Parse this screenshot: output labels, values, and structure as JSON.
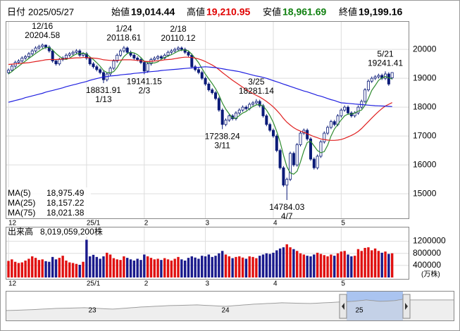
{
  "header": {
    "date_label": "日付",
    "date": "2025/05/27",
    "fields": [
      {
        "label": "始値",
        "value": "19,014.44"
      },
      {
        "label": "高値",
        "value": "19,210.95"
      },
      {
        "label": "安値",
        "value": "18,961.69"
      },
      {
        "label": "終値",
        "value": "19,199.16"
      }
    ]
  },
  "chart_data": {
    "type": "candlestick",
    "categories": [
      "12",
      null,
      null,
      null,
      null,
      null,
      null,
      null,
      null,
      null,
      null,
      null,
      null,
      null,
      null,
      null,
      null,
      null,
      null,
      null,
      null,
      null,
      null,
      "25/1",
      null,
      null,
      null,
      null,
      null,
      null,
      null,
      null,
      null,
      null,
      null,
      null,
      null,
      null,
      null,
      null,
      "2",
      null,
      null,
      null,
      null,
      null,
      null,
      null,
      null,
      null,
      null,
      null,
      null,
      null,
      null,
      null,
      null,
      null,
      "3",
      null,
      null,
      null,
      null,
      null,
      null,
      null,
      null,
      null,
      null,
      null,
      null,
      null,
      null,
      null,
      null,
      null,
      null,
      null,
      "4",
      null,
      null,
      null,
      null,
      null,
      null,
      null,
      null,
      null,
      null,
      null,
      null,
      null,
      null,
      null,
      null,
      null,
      null,
      null,
      "5",
      null,
      null,
      null,
      null,
      null,
      null,
      null,
      null,
      null,
      null,
      null,
      null,
      null,
      null,
      null
    ],
    "ohlc": {
      "open": [
        19200,
        19280,
        19420,
        19550,
        19600,
        19700,
        19750,
        19850,
        19950,
        20050,
        20100,
        20150,
        20080,
        19950,
        19600,
        19500,
        19650,
        19700,
        19800,
        19850,
        19900,
        19950,
        19800,
        19850,
        19700,
        19500,
        19400,
        19300,
        19200,
        18950,
        19150,
        19350,
        19600,
        19800,
        19950,
        20050,
        19900,
        19800,
        19700,
        19650,
        19550,
        19250,
        19500,
        19650,
        19700,
        19750,
        19700,
        19800,
        19900,
        19950,
        20000,
        20050,
        20000,
        19900,
        19800,
        19400,
        19300,
        19200,
        19000,
        18800,
        18600,
        18500,
        18300,
        17900,
        17400,
        17550,
        17700,
        17600,
        17800,
        17900,
        18000,
        17950,
        18100,
        18150,
        18200,
        18050,
        17700,
        17400,
        17200,
        17000,
        16500,
        15900,
        15300,
        15500,
        16400,
        16000,
        16700,
        17100,
        17200,
        16900,
        16200,
        15900,
        16300,
        16800,
        17100,
        17300,
        17500,
        17400,
        17700,
        17900,
        18000,
        17800,
        17700,
        17800,
        18000,
        18200,
        18600,
        18900,
        19000,
        19050,
        19100,
        19000,
        19150,
        19014.44
      ],
      "high": [
        19340,
        19480,
        19610,
        19660,
        19760,
        19810,
        19910,
        20010,
        20110,
        20160,
        20204.58,
        20170,
        20140,
        20010,
        19660,
        19710,
        19760,
        19860,
        19910,
        19960,
        20010,
        20010,
        19910,
        19910,
        19760,
        19560,
        19460,
        19360,
        19260,
        19210,
        19410,
        19660,
        19860,
        20010,
        20118.61,
        20100,
        19960,
        19860,
        19760,
        19710,
        19610,
        19560,
        19710,
        19760,
        19810,
        19810,
        19860,
        19960,
        20010,
        20060,
        20110.12,
        20100,
        20060,
        19960,
        19860,
        19460,
        19360,
        19260,
        19060,
        18860,
        18660,
        18560,
        18360,
        17960,
        17610,
        17760,
        17760,
        17860,
        17960,
        18060,
        18060,
        18160,
        18210,
        18281.14,
        18260,
        18110,
        17760,
        17460,
        17260,
        17060,
        16560,
        15960,
        15560,
        16460,
        16460,
        16760,
        17160,
        17260,
        17260,
        16960,
        16260,
        16360,
        16860,
        17160,
        17360,
        17560,
        17560,
        17760,
        17960,
        18060,
        18060,
        17860,
        17860,
        18060,
        18260,
        18660,
        18960,
        19060,
        19110,
        19160,
        19160,
        19241.41,
        19210,
        19210.95
      ],
      "low": [
        19140,
        19220,
        19360,
        19490,
        19540,
        19640,
        19690,
        19790,
        19890,
        19990,
        20040,
        20020,
        19890,
        19540,
        19440,
        19440,
        19590,
        19640,
        19740,
        19790,
        19840,
        19740,
        19740,
        19640,
        19440,
        19340,
        19240,
        19140,
        18831.91,
        18890,
        19090,
        19290,
        19540,
        19740,
        19890,
        19840,
        19740,
        19640,
        19590,
        19490,
        19141.15,
        19190,
        19440,
        19590,
        19640,
        19640,
        19640,
        19740,
        19840,
        19890,
        19940,
        19940,
        19840,
        19740,
        19340,
        19240,
        19140,
        18940,
        18740,
        18540,
        18440,
        18240,
        17840,
        17238.24,
        17340,
        17490,
        17540,
        17540,
        17740,
        17840,
        17890,
        17890,
        18040,
        18090,
        17990,
        17640,
        17340,
        17140,
        16940,
        16440,
        15840,
        15240,
        14784.03,
        15440,
        15940,
        15940,
        16640,
        17040,
        16840,
        16140,
        15840,
        15840,
        16240,
        16740,
        17040,
        17240,
        17340,
        17340,
        17640,
        17840,
        17740,
        17640,
        17640,
        17740,
        17940,
        18140,
        18540,
        18840,
        18940,
        18990,
        18940,
        18940,
        18740,
        18961.69
      ],
      "close": [
        19280,
        19420,
        19550,
        19600,
        19700,
        19750,
        19850,
        19950,
        20050,
        20100,
        20150,
        20080,
        19950,
        19600,
        19500,
        19650,
        19700,
        19800,
        19850,
        19900,
        19950,
        19800,
        19850,
        19700,
        19500,
        19400,
        19300,
        19200,
        18950,
        19150,
        19350,
        19600,
        19800,
        19950,
        20050,
        19900,
        19800,
        19700,
        19650,
        19550,
        19250,
        19500,
        19650,
        19700,
        19750,
        19700,
        19800,
        19900,
        19950,
        20000,
        20050,
        20000,
        19900,
        19800,
        19400,
        19300,
        19200,
        19000,
        18800,
        18600,
        18500,
        18300,
        17900,
        17400,
        17550,
        17700,
        17600,
        17800,
        17900,
        18000,
        17950,
        18100,
        18150,
        18200,
        18050,
        17700,
        17400,
        17200,
        17000,
        16500,
        15900,
        15300,
        15500,
        16400,
        16000,
        16700,
        17100,
        17200,
        16900,
        16200,
        15900,
        16300,
        16800,
        17100,
        17300,
        17500,
        17400,
        17700,
        17900,
        18000,
        17800,
        17700,
        17800,
        18000,
        18200,
        18600,
        18900,
        19000,
        19050,
        19100,
        19000,
        19150,
        18800,
        19199.16
      ]
    },
    "up_color": "#ffffff",
    "down_color": "#0a1a78",
    "candle_stroke": "#0a1a78",
    "series": [
      {
        "name": "MA(5)",
        "color": "#2e8b2e",
        "legend_value": {
          "value": 18975.49,
          "label": "18,975.49"
        },
        "values": [
          19150,
          19230,
          19330,
          19420,
          19510,
          19600,
          19690,
          19770,
          19860,
          19940,
          20020,
          20070,
          20070,
          19980,
          19860,
          19760,
          19680,
          19650,
          19700,
          19780,
          19840,
          19860,
          19870,
          19840,
          19740,
          19650,
          19540,
          19420,
          19270,
          19200,
          19190,
          19230,
          19370,
          19570,
          19750,
          19860,
          19900,
          19880,
          19820,
          19720,
          19590,
          19540,
          19530,
          19530,
          19570,
          19660,
          19720,
          19770,
          19820,
          19880,
          19940,
          19980,
          19980,
          19950,
          19830,
          19690,
          19540,
          19340,
          19140,
          18980,
          18820,
          18640,
          18420,
          18140,
          17930,
          17770,
          17630,
          17610,
          17710,
          17800,
          17850,
          17950,
          18020,
          18080,
          18090,
          18040,
          17900,
          17710,
          17470,
          17160,
          16800,
          16340,
          15940,
          15720,
          15680,
          15780,
          16100,
          16480,
          16780,
          16820,
          16660,
          16500,
          16420,
          16460,
          16680,
          17000,
          17240,
          17400,
          17560,
          17700,
          17760,
          17760,
          17800,
          17860,
          17900,
          18060,
          18300,
          18580,
          18750,
          18930,
          19010,
          19060,
          19020,
          18975.49
        ]
      },
      {
        "name": "MA(25)",
        "color": "#e02020",
        "legend_value": {
          "value": 18157.22,
          "label": "18,157.22"
        },
        "values": [
          19480,
          19490,
          19500,
          19510,
          19520,
          19530,
          19540,
          19560,
          19580,
          19600,
          19620,
          19640,
          19650,
          19650,
          19650,
          19660,
          19670,
          19680,
          19690,
          19700,
          19710,
          19710,
          19720,
          19720,
          19710,
          19700,
          19690,
          19670,
          19640,
          19630,
          19620,
          19620,
          19620,
          19630,
          19640,
          19640,
          19640,
          19630,
          19620,
          19610,
          19590,
          19580,
          19590,
          19600,
          19610,
          19620,
          19640,
          19650,
          19660,
          19680,
          19700,
          19720,
          19730,
          19730,
          19720,
          19700,
          19670,
          19630,
          19580,
          19520,
          19460,
          19390,
          19300,
          19200,
          19110,
          19020,
          18930,
          18850,
          18770,
          18690,
          18610,
          18540,
          18470,
          18410,
          18350,
          18280,
          18200,
          18110,
          18010,
          17890,
          17760,
          17610,
          17480,
          17380,
          17290,
          17220,
          17170,
          17130,
          17080,
          17030,
          16980,
          16940,
          16900,
          16880,
          16860,
          16850,
          16850,
          16860,
          16880,
          16920,
          16970,
          17020,
          17080,
          17160,
          17260,
          17380,
          17500,
          17620,
          17740,
          17850,
          17950,
          18040,
          18100,
          18157.22
        ]
      },
      {
        "name": "MA(75)",
        "color": "#2020e0",
        "legend_value": {
          "value": 18021.38,
          "label": "18,021.38"
        },
        "values": [
          18170,
          18200,
          18230,
          18260,
          18290,
          18330,
          18360,
          18390,
          18420,
          18450,
          18480,
          18520,
          18550,
          18580,
          18610,
          18640,
          18670,
          18710,
          18740,
          18770,
          18800,
          18830,
          18860,
          18890,
          18930,
          18960,
          18990,
          19020,
          19050,
          19060,
          19080,
          19090,
          19100,
          19120,
          19130,
          19140,
          19150,
          19170,
          19180,
          19190,
          19200,
          19220,
          19230,
          19240,
          19250,
          19270,
          19280,
          19290,
          19300,
          19310,
          19320,
          19330,
          19340,
          19350,
          19360,
          19370,
          19380,
          19390,
          19400,
          19390,
          19380,
          19370,
          19350,
          19330,
          19310,
          19290,
          19270,
          19250,
          19230,
          19200,
          19170,
          19140,
          19110,
          19080,
          19060,
          19030,
          19000,
          18960,
          18920,
          18880,
          18840,
          18800,
          18760,
          18720,
          18680,
          18640,
          18600,
          18560,
          18530,
          18490,
          18450,
          18410,
          18380,
          18340,
          18300,
          18260,
          18230,
          18190,
          18150,
          18140,
          18130,
          18120,
          18110,
          18100,
          18090,
          18080,
          18070,
          18060,
          18050,
          18045,
          18040,
          18035,
          18028,
          18021.38
        ]
      }
    ],
    "ylim": [
      14150,
      20980
    ],
    "yticks": [
      15000,
      16000,
      17000,
      18000,
      19000,
      20000
    ],
    "grid": true,
    "annotations": [
      {
        "date": "12/16",
        "value": 20204.58
      },
      {
        "date": "1/13",
        "value": 18831.91
      },
      {
        "date": "1/24",
        "value": 20118.61
      },
      {
        "date": "2/3",
        "value": 19141.15
      },
      {
        "date": "2/18",
        "value": 20110.12
      },
      {
        "date": "3/11",
        "value": 17238.24
      },
      {
        "date": "3/25",
        "value": 18281.14
      },
      {
        "date": "4/7",
        "value": 14784.03
      },
      {
        "date": "5/21",
        "value": 19241.41
      }
    ],
    "volume": {
      "title": "出来高",
      "latest": "8,019,059,200株",
      "unit": "(万株)",
      "up_color": "#e01010",
      "down_color": "#1a1a8c",
      "ylim": [
        0,
        1400000
      ],
      "yticks": [
        1200000,
        800000,
        400000
      ],
      "values": [
        550000,
        600000,
        520000,
        480000,
        500000,
        560000,
        620000,
        700000,
        650000,
        580000,
        600000,
        540000,
        520000,
        680000,
        600000,
        650000,
        720000,
        560000,
        500000,
        480000,
        450000,
        420000,
        520000,
        1250000,
        700000,
        750000,
        680000,
        620000,
        700000,
        820000,
        760000,
        640000,
        600000,
        580000,
        700000,
        650000,
        600000,
        560000,
        620000,
        580000,
        760000,
        700000,
        650000,
        600000,
        620000,
        580000,
        640000,
        600000,
        560000,
        620000,
        680000,
        600000,
        560000,
        650000,
        700000,
        660000,
        620000,
        720000,
        700000,
        760000,
        680000,
        720000,
        800000,
        880000,
        760000,
        700000,
        640000,
        680000,
        700000,
        660000,
        620000,
        700000,
        680000,
        640000,
        720000,
        760000,
        800000,
        780000,
        820000,
        900000,
        960000,
        1000000,
        1100000,
        1000000,
        940000,
        880000,
        800000,
        760000,
        720000,
        700000,
        760000,
        820000,
        780000,
        740000,
        700000,
        760000,
        720000,
        800000,
        860000,
        880000,
        760000,
        700000,
        720000,
        940000,
        880000,
        980000,
        1000000,
        900000,
        960000,
        880000,
        820000,
        860000,
        780000,
        801906
      ]
    }
  },
  "navigator": {
    "labels": [
      "23",
      "24",
      "25"
    ]
  }
}
